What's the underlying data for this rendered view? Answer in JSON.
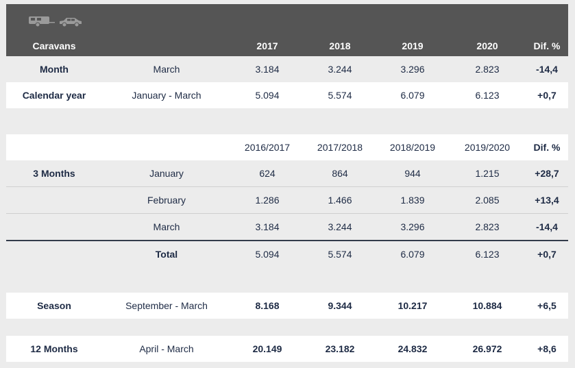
{
  "caravans": {
    "title": "Caravans",
    "icons": [
      "caravan-icon",
      "car-icon"
    ],
    "headers": [
      "2017",
      "2018",
      "2019",
      "2020",
      "Dif. %"
    ],
    "rows": [
      {
        "label": "Month",
        "period": "March",
        "values": [
          "3.184",
          "3.244",
          "3.296",
          "2.823"
        ],
        "dif": "-14,4"
      },
      {
        "label": "Calendar year",
        "period": "January - March",
        "values": [
          "5.094",
          "5.574",
          "6.079",
          "6.123"
        ],
        "dif": "+0,7"
      }
    ]
  },
  "three_months": {
    "headers": [
      "2016/2017",
      "2017/2018",
      "2018/2019",
      "2019/2020",
      "Dif. %"
    ],
    "label": "3 Months",
    "rows": [
      {
        "period": "January",
        "values": [
          "624",
          "864",
          "944",
          "1.215"
        ],
        "dif": "+28,7"
      },
      {
        "period": "February",
        "values": [
          "1.286",
          "1.466",
          "1.839",
          "2.085"
        ],
        "dif": "+13,4"
      },
      {
        "period": "March",
        "values": [
          "3.184",
          "3.244",
          "3.296",
          "2.823"
        ],
        "dif": "-14,4"
      }
    ],
    "total": {
      "label": "Total",
      "values": [
        "5.094",
        "5.574",
        "6.079",
        "6.123"
      ],
      "dif": "+0,7"
    }
  },
  "season": {
    "label": "Season",
    "period": "September - March",
    "values": [
      "8.168",
      "9.344",
      "10.217",
      "10.884"
    ],
    "dif": "+6,5"
  },
  "twelve_months": {
    "label": "12 Months",
    "period": "April - March",
    "values": [
      "20.149",
      "23.182",
      "24.832",
      "26.972"
    ],
    "dif": "+8,6"
  },
  "colors": {
    "header_bg": "#555555",
    "text": "#1d2a44",
    "page_bg": "#ececec"
  }
}
